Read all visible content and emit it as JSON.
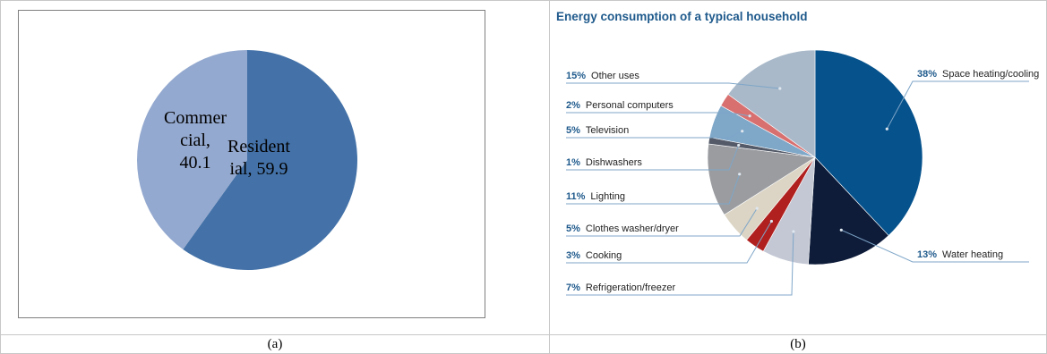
{
  "captions": {
    "a": "(a)",
    "b": "(b)"
  },
  "chart_data": [
    {
      "type": "pie",
      "title": "",
      "slices": [
        {
          "label": "Resident ial, 59.9",
          "name": "Residential",
          "value": 59.9,
          "color": "#4472a8"
        },
        {
          "label": "Commer cial, 40.1",
          "name": "Commercial",
          "value": 40.1,
          "color": "#94a9cf"
        }
      ],
      "label_lines": {
        "Residential": [
          "Resident",
          "ial, 59.9"
        ],
        "Commercial": [
          "Commer",
          "cial,",
          "40.1"
        ]
      }
    },
    {
      "type": "pie",
      "title": "Energy consumption of a typical household",
      "slices": [
        {
          "pct": "38%",
          "label": "Space heating/cooling",
          "value": 38,
          "color": "#06528c"
        },
        {
          "pct": "13%",
          "label": "Water heating",
          "value": 13,
          "color": "#0e1c3a"
        },
        {
          "pct": "7%",
          "label": "Refrigeration/freezer",
          "value": 7,
          "color": "#c3c8d4"
        },
        {
          "pct": "3%",
          "label": "Cooking",
          "value": 3,
          "color": "#b0201f"
        },
        {
          "pct": "5%",
          "label": "Clothes washer/dryer",
          "value": 5,
          "color": "#dcd5c5"
        },
        {
          "pct": "11%",
          "label": "Lighting",
          "value": 11,
          "color": "#9a9ca0"
        },
        {
          "pct": "1%",
          "label": "Dishwashers",
          "value": 1,
          "color": "#545a68"
        },
        {
          "pct": "5%",
          "label": "Television",
          "value": 5,
          "color": "#7ea7c8"
        },
        {
          "pct": "2%",
          "label": "Personal computers",
          "value": 2,
          "color": "#d87070"
        },
        {
          "pct": "15%",
          "label": "Other uses",
          "value": 15,
          "color": "#a9b9c9"
        }
      ]
    }
  ]
}
